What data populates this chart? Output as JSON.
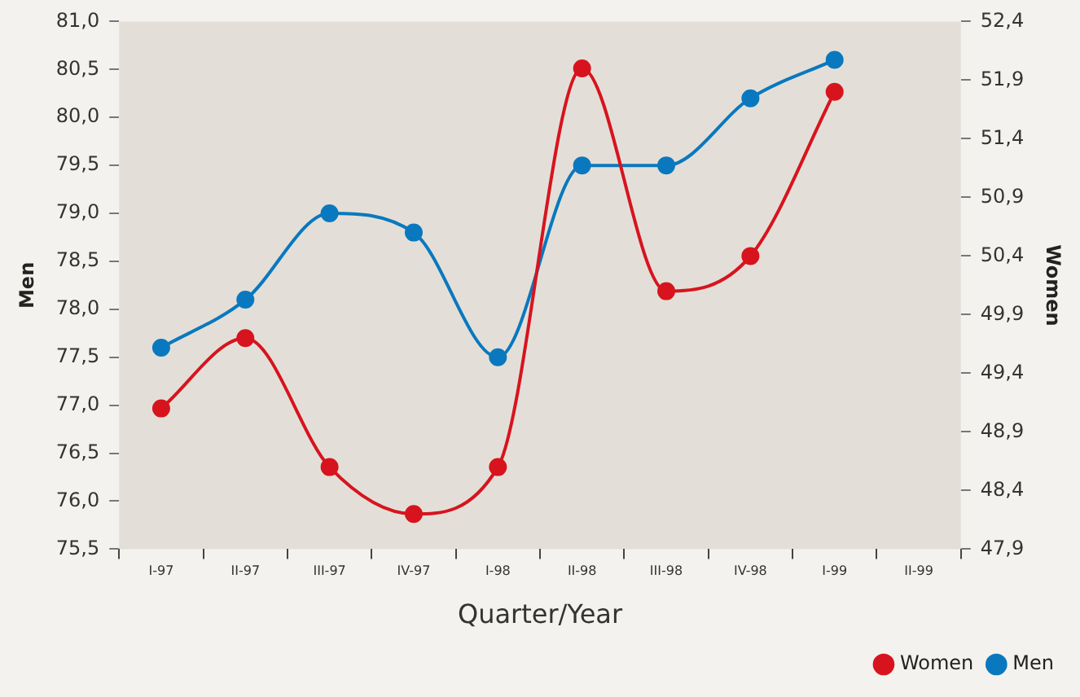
{
  "chart_data": {
    "type": "line",
    "xlabel": "Quarter/Year",
    "ylabel": "Men",
    "y2label": "Women",
    "categories": [
      "I-97",
      "II-97",
      "III-97",
      "IV-97",
      "I-98",
      "II-98",
      "III-98",
      "IV-98",
      "I-99",
      "II-99"
    ],
    "series": [
      {
        "name": "Women",
        "color": "#d7141e",
        "axis": "y2",
        "values": [
          49.1,
          49.7,
          48.6,
          48.2,
          48.6,
          52.0,
          50.1,
          50.4,
          51.8,
          null
        ]
      },
      {
        "name": "Men",
        "color": "#0a78be",
        "values": [
          77.6,
          78.1,
          79.0,
          78.8,
          77.5,
          79.5,
          79.5,
          80.2,
          80.6,
          null
        ]
      }
    ],
    "ylim": [
      75.5,
      81.0
    ],
    "yticks": [
      {
        "value": 75.5,
        "label": "75,5"
      },
      {
        "value": 76,
        "label": "76,0"
      },
      {
        "value": 76.5,
        "label": "76,5"
      },
      {
        "value": 77,
        "label": "77,0"
      },
      {
        "value": 77.5,
        "label": "77,5"
      },
      {
        "value": 78,
        "label": "78,0"
      },
      {
        "value": 78.5,
        "label": "78,5"
      },
      {
        "value": 79,
        "label": "79,0"
      },
      {
        "value": 79.5,
        "label": "79,5"
      },
      {
        "value": 80,
        "label": "80,0"
      },
      {
        "value": 80.5,
        "label": "80,5"
      },
      {
        "value": 81,
        "label": "81,0"
      }
    ],
    "y2lim": [
      47.9,
      52.4
    ],
    "y2ticks": [
      {
        "value": 47.9,
        "label": "47,9"
      },
      {
        "value": 48.4,
        "label": "48,4"
      },
      {
        "value": 48.9,
        "label": "48,9"
      },
      {
        "value": 49.4,
        "label": "49,4"
      },
      {
        "value": 49.9,
        "label": "49,9"
      },
      {
        "value": 50.4,
        "label": "50,4"
      },
      {
        "value": 50.9,
        "label": "50,9"
      },
      {
        "value": 51.4,
        "label": "51,4"
      },
      {
        "value": 51.9,
        "label": "51,9"
      },
      {
        "value": 52.4,
        "label": "52,4"
      }
    ],
    "grid": false,
    "legend": "bottom right",
    "marker": "circle",
    "line_style": "solid"
  }
}
